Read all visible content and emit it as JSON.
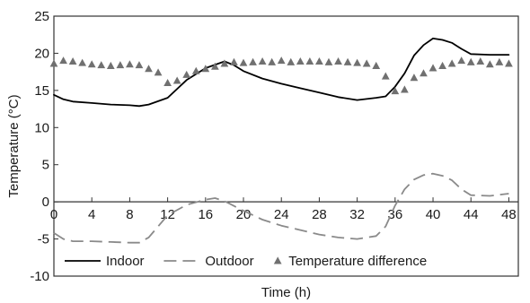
{
  "chart_data": {
    "type": "line",
    "xlabel": "Time (h)",
    "ylabel": "Temperature (°C)",
    "xlim": [
      0,
      49
    ],
    "ylim": [
      -10,
      25
    ],
    "x_ticks": [
      0,
      4,
      8,
      12,
      16,
      20,
      24,
      28,
      32,
      36,
      40,
      44,
      48
    ],
    "y_ticks": [
      -10,
      -5,
      0,
      5,
      10,
      15,
      20,
      25
    ],
    "grid": false,
    "legend_position": "bottom",
    "series": [
      {
        "name": "Indoor",
        "style": "solid-line",
        "color": "#000000",
        "points": [
          [
            0,
            14.4
          ],
          [
            1,
            13.8
          ],
          [
            2,
            13.5
          ],
          [
            4,
            13.3
          ],
          [
            6,
            13.1
          ],
          [
            8,
            13.0
          ],
          [
            9,
            12.9
          ],
          [
            10,
            13.1
          ],
          [
            12,
            14.0
          ],
          [
            14,
            16.4
          ],
          [
            16,
            18.0
          ],
          [
            18,
            18.9
          ],
          [
            19,
            18.4
          ],
          [
            20,
            17.6
          ],
          [
            22,
            16.6
          ],
          [
            24,
            15.9
          ],
          [
            26,
            15.3
          ],
          [
            28,
            14.7
          ],
          [
            30,
            14.1
          ],
          [
            32,
            13.7
          ],
          [
            34,
            14.0
          ],
          [
            35,
            14.2
          ],
          [
            36,
            15.5
          ],
          [
            37,
            17.3
          ],
          [
            38,
            19.7
          ],
          [
            39,
            21.1
          ],
          [
            40,
            22.0
          ],
          [
            41,
            21.8
          ],
          [
            42,
            21.4
          ],
          [
            43,
            20.6
          ],
          [
            44,
            19.9
          ],
          [
            46,
            19.8
          ],
          [
            48,
            19.8
          ]
        ]
      },
      {
        "name": "Outdoor",
        "style": "dashed-line",
        "color": "#8a8a8a",
        "points": [
          [
            0,
            -4.2
          ],
          [
            1,
            -5.0
          ],
          [
            2,
            -5.3
          ],
          [
            4,
            -5.3
          ],
          [
            6,
            -5.4
          ],
          [
            8,
            -5.5
          ],
          [
            9,
            -5.5
          ],
          [
            10,
            -4.8
          ],
          [
            12,
            -1.8
          ],
          [
            14,
            -0.4
          ],
          [
            16,
            0.3
          ],
          [
            17,
            0.5
          ],
          [
            18,
            0.1
          ],
          [
            20,
            -1.2
          ],
          [
            22,
            -2.4
          ],
          [
            24,
            -3.2
          ],
          [
            26,
            -3.8
          ],
          [
            28,
            -4.4
          ],
          [
            30,
            -4.8
          ],
          [
            32,
            -5.0
          ],
          [
            34,
            -4.6
          ],
          [
            35,
            -3.3
          ],
          [
            36,
            -0.5
          ],
          [
            37,
            1.7
          ],
          [
            38,
            3.0
          ],
          [
            39,
            3.6
          ],
          [
            40,
            3.8
          ],
          [
            41,
            3.5
          ],
          [
            42,
            2.9
          ],
          [
            43,
            1.7
          ],
          [
            44,
            0.9
          ],
          [
            46,
            0.8
          ],
          [
            48,
            1.1
          ]
        ]
      },
      {
        "name": "Temperature difference",
        "style": "triangle-markers",
        "color": "#707070",
        "points": [
          [
            0,
            18.6
          ],
          [
            1,
            19.0
          ],
          [
            2,
            18.9
          ],
          [
            3,
            18.7
          ],
          [
            4,
            18.5
          ],
          [
            5,
            18.4
          ],
          [
            6,
            18.3
          ],
          [
            7,
            18.4
          ],
          [
            8,
            18.5
          ],
          [
            9,
            18.4
          ],
          [
            10,
            17.9
          ],
          [
            11,
            17.4
          ],
          [
            12,
            16.0
          ],
          [
            13,
            16.3
          ],
          [
            14,
            17.1
          ],
          [
            15,
            17.6
          ],
          [
            16,
            17.9
          ],
          [
            17,
            18.2
          ],
          [
            18,
            18.6
          ],
          [
            19,
            18.8
          ],
          [
            20,
            18.7
          ],
          [
            21,
            18.8
          ],
          [
            22,
            18.9
          ],
          [
            23,
            18.8
          ],
          [
            24,
            19.0
          ],
          [
            25,
            18.8
          ],
          [
            26,
            18.9
          ],
          [
            27,
            18.9
          ],
          [
            28,
            18.9
          ],
          [
            29,
            18.8
          ],
          [
            30,
            18.9
          ],
          [
            31,
            18.8
          ],
          [
            32,
            18.7
          ],
          [
            33,
            18.6
          ],
          [
            34,
            18.3
          ],
          [
            35,
            16.9
          ],
          [
            36,
            14.9
          ],
          [
            37,
            15.1
          ],
          [
            38,
            16.7
          ],
          [
            39,
            17.3
          ],
          [
            40,
            18.0
          ],
          [
            41,
            18.3
          ],
          [
            42,
            18.6
          ],
          [
            43,
            19.0
          ],
          [
            44,
            18.8
          ],
          [
            45,
            18.9
          ],
          [
            46,
            18.5
          ],
          [
            47,
            18.8
          ],
          [
            48,
            18.6
          ]
        ]
      }
    ]
  }
}
